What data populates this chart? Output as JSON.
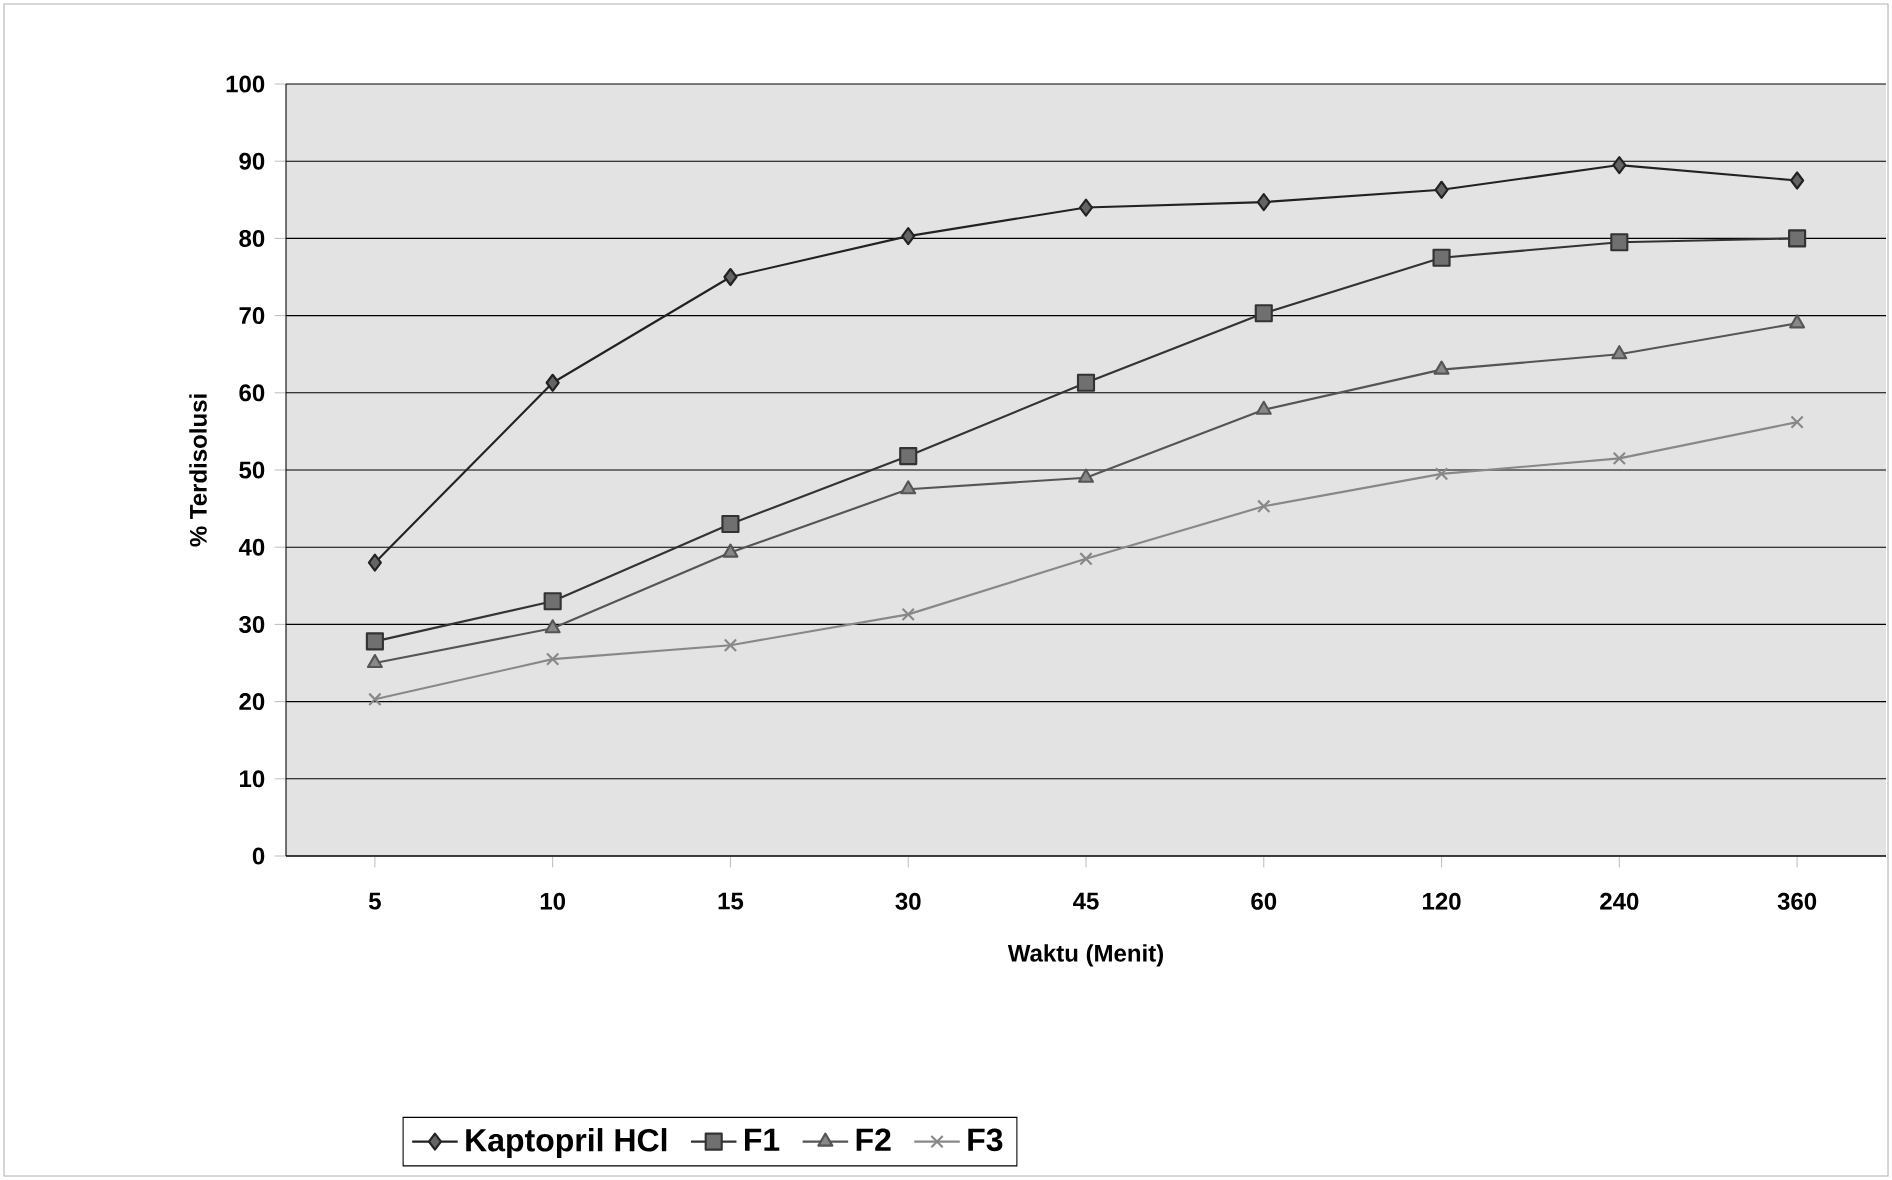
{
  "chart_data": {
    "type": "line",
    "xlabel": "Waktu (Menit)",
    "ylabel": "% Terdisolusi",
    "categories": [
      "5",
      "10",
      "15",
      "30",
      "45",
      "60",
      "120",
      "240",
      "360"
    ],
    "ylim": [
      0,
      100
    ],
    "yticks": [
      0,
      10,
      20,
      30,
      40,
      50,
      60,
      70,
      80,
      90,
      100
    ],
    "grid": "y",
    "legend": "bottom",
    "series": [
      {
        "name": "Kaptopril HCl",
        "color": "#222222",
        "marker": "diamond",
        "values": [
          38,
          61.3,
          75,
          80.3,
          84,
          84.7,
          86.3,
          89.5,
          87.5
        ]
      },
      {
        "name": "F1",
        "color": "#333333",
        "marker": "square",
        "values": [
          27.8,
          33,
          43,
          51.8,
          61.3,
          70.3,
          77.5,
          79.5,
          80
        ]
      },
      {
        "name": "F2",
        "color": "#555555",
        "marker": "triangle",
        "values": [
          25,
          29.5,
          39.3,
          47.5,
          49,
          57.8,
          63,
          65,
          69
        ]
      },
      {
        "name": "F3",
        "color": "#888888",
        "marker": "cross",
        "values": [
          20.3,
          25.5,
          27.3,
          31.3,
          38.5,
          45.3,
          49.5,
          51.5,
          56.2
        ]
      }
    ]
  }
}
